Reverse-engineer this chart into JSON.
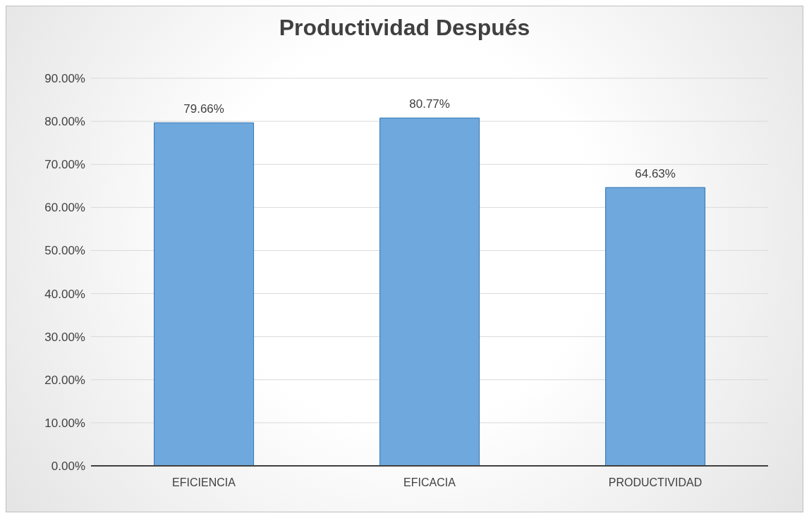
{
  "chart_data": {
    "type": "bar",
    "title": "Productividad Después",
    "categories": [
      "EFICIENCIA",
      "EFICACIA",
      "PRODUCTIVIDAD"
    ],
    "values": [
      79.66,
      80.77,
      64.63
    ],
    "value_labels": [
      "79.66%",
      "80.77%",
      "64.63%"
    ],
    "color": "#6fa8dc",
    "ylim": [
      0,
      90
    ],
    "yticks": [
      {
        "value": 0,
        "label": "0.00%"
      },
      {
        "value": 10,
        "label": "10.00%"
      },
      {
        "value": 20,
        "label": "20.00%"
      },
      {
        "value": 30,
        "label": "30.00%"
      },
      {
        "value": 40,
        "label": "40.00%"
      },
      {
        "value": 50,
        "label": "50.00%"
      },
      {
        "value": 60,
        "label": "60.00%"
      },
      {
        "value": 70,
        "label": "70.00%"
      },
      {
        "value": 80,
        "label": "80.00%"
      },
      {
        "value": 90,
        "label": "90.00%"
      }
    ],
    "grid": "y"
  }
}
